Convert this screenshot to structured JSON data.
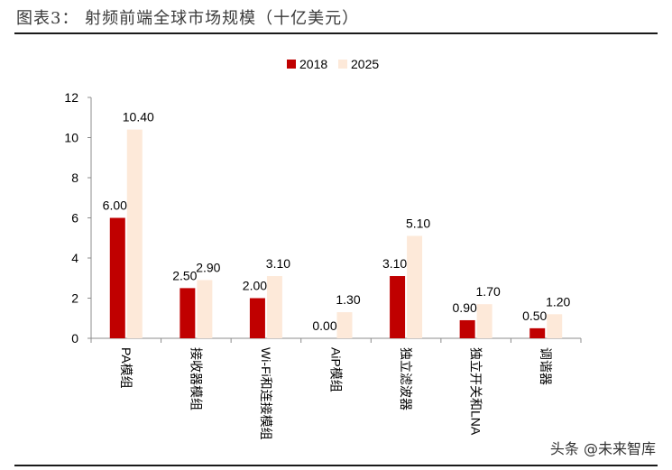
{
  "header": {
    "title": "图表3：  射频前端全球市场规模（十亿美元）"
  },
  "watermark": "头条 @未来智库",
  "chart_data": {
    "type": "bar",
    "categories": [
      "PA模组",
      "接收器模组",
      "Wi-Fi和连接模组",
      "AiP模组",
      "独立滤波器",
      "独立开关和LNA",
      "调谐器"
    ],
    "series": [
      {
        "name": "2018",
        "values": [
          6.0,
          2.5,
          2.0,
          0.0,
          3.1,
          0.9,
          0.5
        ],
        "color": "#c00000"
      },
      {
        "name": "2025",
        "values": [
          10.4,
          2.9,
          3.1,
          1.3,
          5.1,
          1.7,
          1.2
        ],
        "color": "#fde9d9"
      }
    ],
    "data_labels": [
      [
        "6.00",
        "2.50",
        "2.00",
        "0.00",
        "3.10",
        "0.90",
        "0.50"
      ],
      [
        "10.40",
        "2.90",
        "3.10",
        "1.30",
        "5.10",
        "1.70",
        "1.20"
      ]
    ],
    "yticks": [
      "0",
      "2",
      "4",
      "6",
      "8",
      "10",
      "12"
    ],
    "ylim": [
      0,
      12
    ],
    "legend": "top-center",
    "grid": false
  }
}
